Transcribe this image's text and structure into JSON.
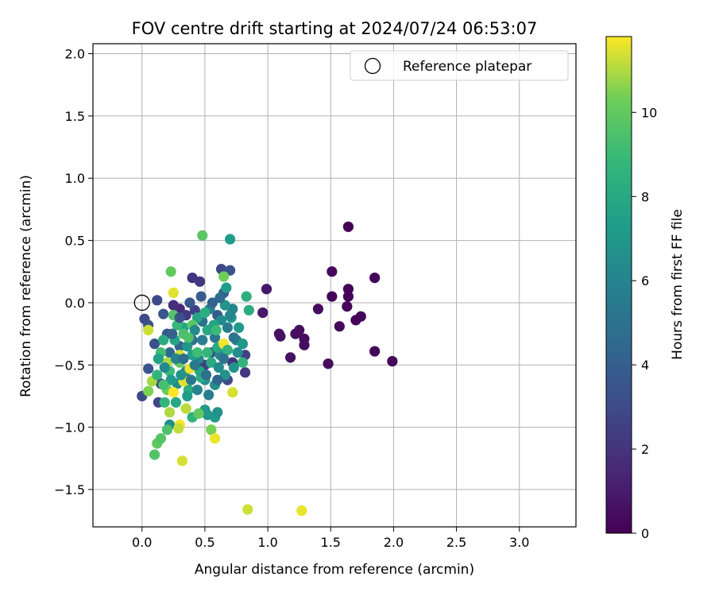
{
  "chart_data": {
    "type": "scatter",
    "title": "FOV centre drift starting at 2024/07/24 06:53:07",
    "xlabel": "Angular distance from reference (arcmin)",
    "ylabel": "Rotation from reference (arcmin)",
    "xlim": [
      -0.39,
      3.45
    ],
    "ylim": [
      -1.8,
      2.08
    ],
    "xticks": [
      0.0,
      0.5,
      1.0,
      1.5,
      2.0,
      2.5,
      3.0
    ],
    "xtick_labels": [
      "0.0",
      "0.5",
      "1.0",
      "1.5",
      "2.0",
      "2.5",
      "3.0"
    ],
    "yticks": [
      -1.5,
      -1.0,
      -0.5,
      0.0,
      0.5,
      1.0,
      1.5,
      2.0
    ],
    "ytick_labels": [
      "−1.5",
      "−1.0",
      "−0.5",
      "0.0",
      "0.5",
      "1.0",
      "1.5",
      "2.0"
    ],
    "grid": true,
    "legend": {
      "placement": "top-right",
      "entries": [
        "Reference platepar"
      ]
    },
    "colorbar": {
      "label": "Hours from first FF file",
      "range": [
        0,
        11.8
      ],
      "ticks": [
        0,
        2,
        4,
        6,
        8,
        10
      ],
      "tick_labels": [
        "0",
        "2",
        "4",
        "6",
        "8",
        "10"
      ],
      "colormap": "viridis"
    },
    "reference_point": {
      "x": 0.0,
      "y": 0.0,
      "label": "Reference platepar"
    },
    "points": [
      {
        "x": 1.64,
        "y": 0.61,
        "c": 0.1
      },
      {
        "x": 1.85,
        "y": 0.2,
        "c": 0.2
      },
      {
        "x": 1.51,
        "y": 0.25,
        "c": 0.3
      },
      {
        "x": 1.64,
        "y": 0.11,
        "c": 0.2
      },
      {
        "x": 1.51,
        "y": 0.05,
        "c": 0.2
      },
      {
        "x": 1.64,
        "y": 0.05,
        "c": 0.1
      },
      {
        "x": 1.63,
        "y": -0.03,
        "c": 0.2
      },
      {
        "x": 1.4,
        "y": -0.05,
        "c": 0.4
      },
      {
        "x": 1.74,
        "y": -0.11,
        "c": 0.3
      },
      {
        "x": 1.7,
        "y": -0.14,
        "c": 0.2
      },
      {
        "x": 1.57,
        "y": -0.19,
        "c": 0.3
      },
      {
        "x": 1.25,
        "y": -0.22,
        "c": 0.5
      },
      {
        "x": 1.22,
        "y": -0.25,
        "c": 0.5
      },
      {
        "x": 1.1,
        "y": -0.27,
        "c": 0.6
      },
      {
        "x": 1.09,
        "y": -0.25,
        "c": 0.6
      },
      {
        "x": 1.29,
        "y": -0.29,
        "c": 0.5
      },
      {
        "x": 1.29,
        "y": -0.34,
        "c": 0.5
      },
      {
        "x": 1.18,
        "y": -0.44,
        "c": 0.6
      },
      {
        "x": 1.48,
        "y": -0.49,
        "c": 0.4
      },
      {
        "x": 1.85,
        "y": -0.39,
        "c": 0.2
      },
      {
        "x": 1.99,
        "y": -0.47,
        "c": 0.2
      },
      {
        "x": 0.99,
        "y": 0.11,
        "c": 0.8
      },
      {
        "x": 0.96,
        "y": -0.08,
        "c": 0.9
      },
      {
        "x": 0.02,
        "y": -0.13,
        "c": 3.0
      },
      {
        "x": 0.12,
        "y": 0.02,
        "c": 2.9
      },
      {
        "x": 0.05,
        "y": -0.18,
        "c": 3.2
      },
      {
        "x": 0.1,
        "y": -0.33,
        "c": 3.3
      },
      {
        "x": 0.05,
        "y": -0.53,
        "c": 3.4
      },
      {
        "x": 0.0,
        "y": -0.75,
        "c": 3.0
      },
      {
        "x": 0.17,
        "y": -0.09,
        "c": 3.5
      },
      {
        "x": 0.2,
        "y": -0.25,
        "c": 3.6
      },
      {
        "x": 0.4,
        "y": 0.2,
        "c": 2.0
      },
      {
        "x": 0.46,
        "y": 0.17,
        "c": 2.1
      },
      {
        "x": 0.63,
        "y": 0.27,
        "c": 2.8
      },
      {
        "x": 0.7,
        "y": 0.26,
        "c": 3.4
      },
      {
        "x": 0.3,
        "y": -0.05,
        "c": 1.5
      },
      {
        "x": 0.25,
        "y": -0.02,
        "c": 1.8
      },
      {
        "x": 0.35,
        "y": -0.1,
        "c": 2.2
      },
      {
        "x": 0.42,
        "y": -0.06,
        "c": 2.5
      },
      {
        "x": 0.82,
        "y": -0.42,
        "c": 2.6
      },
      {
        "x": 0.82,
        "y": -0.56,
        "c": 2.2
      },
      {
        "x": 0.72,
        "y": -0.48,
        "c": 2.0
      },
      {
        "x": 0.5,
        "y": -0.5,
        "c": 2.5
      },
      {
        "x": 0.15,
        "y": -0.65,
        "c": 2.7
      },
      {
        "x": 0.13,
        "y": -0.8,
        "c": 2.8
      },
      {
        "x": 0.68,
        "y": -0.62,
        "c": 3.0
      },
      {
        "x": 0.55,
        "y": -0.4,
        "c": 3.5
      },
      {
        "x": 0.6,
        "y": -0.1,
        "c": 3.8
      },
      {
        "x": 0.65,
        "y": 0.08,
        "c": 4.0
      },
      {
        "x": 0.3,
        "y": -0.35,
        "c": 4.2
      },
      {
        "x": 0.22,
        "y": -0.4,
        "c": 4.5
      },
      {
        "x": 0.4,
        "y": -0.3,
        "c": 4.8
      },
      {
        "x": 0.48,
        "y": -0.15,
        "c": 5.0
      },
      {
        "x": 0.58,
        "y": -0.28,
        "c": 5.2
      },
      {
        "x": 0.68,
        "y": -0.2,
        "c": 5.5
      },
      {
        "x": 0.75,
        "y": -0.3,
        "c": 5.8
      },
      {
        "x": 0.72,
        "y": -0.05,
        "c": 6.0
      },
      {
        "x": 0.62,
        "y": -0.42,
        "c": 6.1
      },
      {
        "x": 0.45,
        "y": -0.45,
        "c": 6.2
      },
      {
        "x": 0.35,
        "y": -0.55,
        "c": 6.4
      },
      {
        "x": 0.28,
        "y": -0.65,
        "c": 6.5
      },
      {
        "x": 0.5,
        "y": -0.62,
        "c": 6.6
      },
      {
        "x": 0.58,
        "y": -0.66,
        "c": 6.7
      },
      {
        "x": 0.66,
        "y": -0.58,
        "c": 6.8
      },
      {
        "x": 0.73,
        "y": -0.52,
        "c": 6.9
      },
      {
        "x": 0.8,
        "y": -0.33,
        "c": 7.0
      },
      {
        "x": 0.77,
        "y": -0.2,
        "c": 7.1
      },
      {
        "x": 0.7,
        "y": 0.51,
        "c": 7.3
      },
      {
        "x": 0.67,
        "y": 0.12,
        "c": 7.4
      },
      {
        "x": 0.52,
        "y": -0.9,
        "c": 7.0
      },
      {
        "x": 0.58,
        "y": -0.92,
        "c": 7.2
      },
      {
        "x": 0.5,
        "y": -0.86,
        "c": 7.1
      },
      {
        "x": 0.6,
        "y": -0.88,
        "c": 6.8
      },
      {
        "x": 0.22,
        "y": -0.98,
        "c": 6.6
      },
      {
        "x": 0.4,
        "y": -0.42,
        "c": 7.5
      },
      {
        "x": 0.33,
        "y": -0.2,
        "c": 7.6
      },
      {
        "x": 0.26,
        "y": -0.3,
        "c": 7.7
      },
      {
        "x": 0.44,
        "y": -0.12,
        "c": 7.8
      },
      {
        "x": 0.52,
        "y": -0.22,
        "c": 7.9
      },
      {
        "x": 0.6,
        "y": -0.36,
        "c": 8.0
      },
      {
        "x": 0.55,
        "y": -0.48,
        "c": 8.1
      },
      {
        "x": 0.47,
        "y": -0.6,
        "c": 8.2
      },
      {
        "x": 0.37,
        "y": -0.7,
        "c": 8.3
      },
      {
        "x": 0.83,
        "y": 0.05,
        "c": 8.4
      },
      {
        "x": 0.85,
        "y": -0.06,
        "c": 8.2
      },
      {
        "x": 0.8,
        "y": -0.48,
        "c": 8.6
      },
      {
        "x": 0.4,
        "y": -0.92,
        "c": 8.5
      },
      {
        "x": 0.18,
        "y": -0.8,
        "c": 8.8
      },
      {
        "x": 0.22,
        "y": -0.55,
        "c": 9.0
      },
      {
        "x": 0.15,
        "y": -0.4,
        "c": 9.2
      },
      {
        "x": 0.33,
        "y": -0.25,
        "c": 9.4
      },
      {
        "x": 0.25,
        "y": -0.1,
        "c": 9.6
      },
      {
        "x": 0.4,
        "y": -0.18,
        "c": 9.8
      },
      {
        "x": 0.3,
        "y": -0.48,
        "c": 10.0
      },
      {
        "x": 0.2,
        "y": -0.7,
        "c": 10.2
      },
      {
        "x": 0.48,
        "y": 0.54,
        "c": 9.8
      },
      {
        "x": 0.23,
        "y": 0.25,
        "c": 10.0
      },
      {
        "x": 0.65,
        "y": 0.21,
        "c": 10.3
      },
      {
        "x": 0.25,
        "y": 0.08,
        "c": 11.5
      },
      {
        "x": 0.05,
        "y": -0.71,
        "c": 10.5
      },
      {
        "x": 0.08,
        "y": -0.63,
        "c": 10.9
      },
      {
        "x": 0.05,
        "y": -0.22,
        "c": 11.3
      },
      {
        "x": 0.1,
        "y": -1.22,
        "c": 9.6
      },
      {
        "x": 0.12,
        "y": -1.13,
        "c": 9.9
      },
      {
        "x": 0.15,
        "y": -1.09,
        "c": 9.7
      },
      {
        "x": 0.2,
        "y": -1.02,
        "c": 9.5
      },
      {
        "x": 0.55,
        "y": -1.02,
        "c": 10.4
      },
      {
        "x": 0.58,
        "y": -1.09,
        "c": 11.6
      },
      {
        "x": 0.32,
        "y": -1.27,
        "c": 11.4
      },
      {
        "x": 0.3,
        "y": -0.98,
        "c": 11.7
      },
      {
        "x": 0.29,
        "y": -1.01,
        "c": 11.2
      },
      {
        "x": 0.35,
        "y": -0.85,
        "c": 11.1
      },
      {
        "x": 0.22,
        "y": -0.88,
        "c": 11.0
      },
      {
        "x": 0.25,
        "y": -0.72,
        "c": 11.8
      },
      {
        "x": 0.33,
        "y": -0.63,
        "c": 11.5
      },
      {
        "x": 0.38,
        "y": -0.53,
        "c": 11.6
      },
      {
        "x": 0.3,
        "y": -0.42,
        "c": 11.3
      },
      {
        "x": 0.2,
        "y": -0.48,
        "c": 11.0
      },
      {
        "x": 0.65,
        "y": -0.33,
        "c": 11.7
      },
      {
        "x": 0.72,
        "y": -0.72,
        "c": 11.4
      },
      {
        "x": 0.45,
        "y": -0.89,
        "c": 10.0
      },
      {
        "x": 0.84,
        "y": -1.66,
        "c": 11.3
      },
      {
        "x": 1.27,
        "y": -1.67,
        "c": 11.6
      },
      {
        "x": 0.63,
        "y": -0.14,
        "c": 6.5
      },
      {
        "x": 0.66,
        "y": -0.02,
        "c": 6.9
      },
      {
        "x": 0.71,
        "y": -0.12,
        "c": 7.2
      },
      {
        "x": 0.54,
        "y": -0.05,
        "c": 5.8
      },
      {
        "x": 0.48,
        "y": -0.3,
        "c": 5.6
      },
      {
        "x": 0.42,
        "y": -0.22,
        "c": 6.3
      },
      {
        "x": 0.36,
        "y": -0.35,
        "c": 7.0
      },
      {
        "x": 0.27,
        "y": -0.45,
        "c": 5.9
      },
      {
        "x": 0.18,
        "y": -0.52,
        "c": 6.2
      },
      {
        "x": 0.23,
        "y": -0.62,
        "c": 7.4
      },
      {
        "x": 0.31,
        "y": -0.58,
        "c": 6.8
      },
      {
        "x": 0.39,
        "y": -0.62,
        "c": 5.3
      },
      {
        "x": 0.44,
        "y": -0.7,
        "c": 6.0
      },
      {
        "x": 0.53,
        "y": -0.74,
        "c": 5.7
      },
      {
        "x": 0.61,
        "y": -0.52,
        "c": 6.4
      },
      {
        "x": 0.57,
        "y": -0.18,
        "c": 7.7
      },
      {
        "x": 0.5,
        "y": -0.08,
        "c": 8.3
      },
      {
        "x": 0.44,
        "y": -0.4,
        "c": 9.1
      },
      {
        "x": 0.37,
        "y": -0.28,
        "c": 9.5
      },
      {
        "x": 0.28,
        "y": -0.18,
        "c": 8.9
      },
      {
        "x": 0.17,
        "y": -0.3,
        "c": 8.1
      },
      {
        "x": 0.13,
        "y": -0.45,
        "c": 7.6
      },
      {
        "x": 0.12,
        "y": -0.58,
        "c": 8.7
      },
      {
        "x": 0.17,
        "y": -0.66,
        "c": 9.3
      },
      {
        "x": 0.27,
        "y": -0.8,
        "c": 8.0
      },
      {
        "x": 0.36,
        "y": -0.75,
        "c": 7.3
      },
      {
        "x": 0.46,
        "y": -0.55,
        "c": 7.8
      },
      {
        "x": 0.52,
        "y": -0.4,
        "c": 8.8
      },
      {
        "x": 0.59,
        "y": -0.22,
        "c": 9.0
      },
      {
        "x": 0.68,
        "y": -0.38,
        "c": 8.5
      },
      {
        "x": 0.76,
        "y": -0.4,
        "c": 6.6
      },
      {
        "x": 0.73,
        "y": -0.28,
        "c": 5.1
      },
      {
        "x": 0.62,
        "y": 0.04,
        "c": 4.6
      },
      {
        "x": 0.56,
        "y": 0.0,
        "c": 4.3
      },
      {
        "x": 0.47,
        "y": 0.05,
        "c": 3.9
      },
      {
        "x": 0.38,
        "y": 0.0,
        "c": 3.6
      },
      {
        "x": 0.3,
        "y": -0.12,
        "c": 3.3
      },
      {
        "x": 0.24,
        "y": -0.25,
        "c": 4.1
      },
      {
        "x": 0.33,
        "y": -0.45,
        "c": 4.7
      },
      {
        "x": 0.42,
        "y": -0.5,
        "c": 5.4
      },
      {
        "x": 0.51,
        "y": -0.58,
        "c": 4.9
      },
      {
        "x": 0.6,
        "y": -0.62,
        "c": 4.4
      },
      {
        "x": 0.65,
        "y": -0.45,
        "c": 5.0
      },
      {
        "x": 0.7,
        "y": -0.1,
        "c": 6.1
      }
    ]
  }
}
